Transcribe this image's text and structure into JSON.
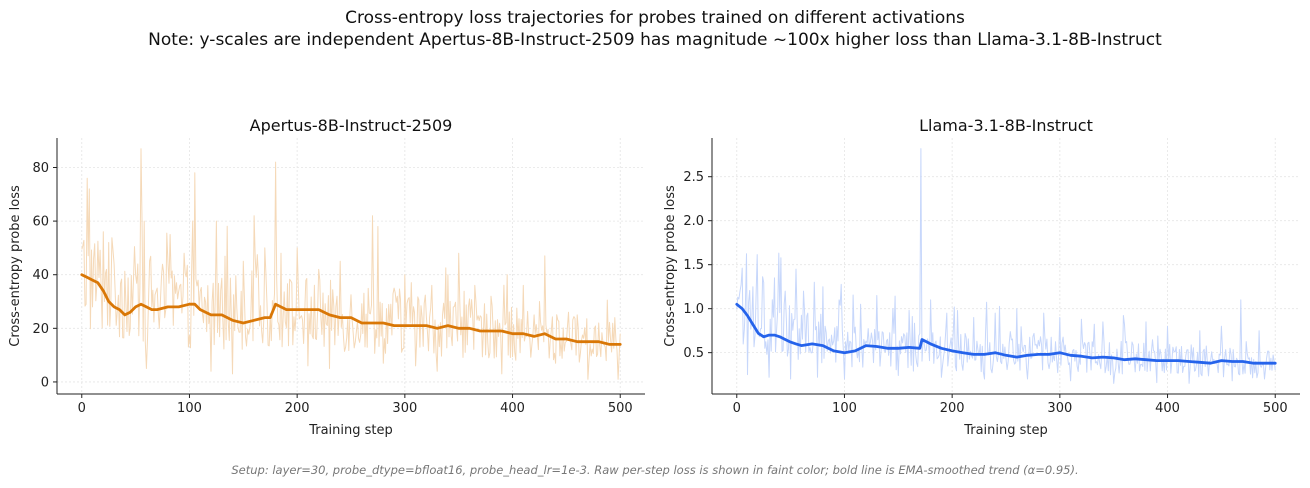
{
  "figure": {
    "title_line1": "Cross-entropy loss trajectories for probes trained on different activations",
    "title_line2": "Note: y-scales are independent Apertus-8B-Instruct-2509 has magnitude ~100x higher loss than Llama-3.1-8B-Instruct",
    "footnote": "Setup: layer=30, probe_dtype=bfloat16, probe_head_lr=1e-3. Raw per-step loss is shown in faint color; bold line is EMA-smoothed trend (α=0.95)."
  },
  "chart_data": [
    {
      "type": "line",
      "title": "Apertus-8B-Instruct-2509",
      "xlabel": "Training step",
      "ylabel": "Cross-entropy probe loss",
      "xlim": [
        -23,
        523
      ],
      "ylim": [
        -4.5,
        91
      ],
      "xticks": [
        0,
        100,
        200,
        300,
        400,
        500
      ],
      "yticks": [
        0,
        20,
        40,
        60,
        80
      ],
      "grid": true,
      "colors": {
        "raw": "#f5d9b8",
        "smooth": "#d97706"
      },
      "raw_loss": {
        "x_start": 0,
        "x_step": 1,
        "baseline": [
          40,
          36,
          34,
          31,
          29,
          28,
          27,
          27,
          27,
          26,
          26,
          25,
          24,
          24,
          23,
          22,
          22,
          21,
          20,
          19,
          18,
          17,
          16,
          16,
          15,
          14
        ],
        "spikes": [
          [
            5,
            76
          ],
          [
            7,
            72
          ],
          [
            10,
            28
          ],
          [
            20,
            56
          ],
          [
            25,
            52
          ],
          [
            30,
            44
          ],
          [
            45,
            20
          ],
          [
            50,
            40
          ],
          [
            55,
            87
          ],
          [
            58,
            60
          ],
          [
            62,
            30
          ],
          [
            70,
            35
          ],
          [
            82,
            55
          ],
          [
            95,
            48
          ],
          [
            105,
            78
          ],
          [
            125,
            60
          ],
          [
            150,
            45
          ],
          [
            160,
            62
          ],
          [
            170,
            50
          ],
          [
            180,
            82
          ],
          [
            185,
            48
          ],
          [
            200,
            50
          ],
          [
            220,
            42
          ],
          [
            240,
            45
          ],
          [
            270,
            62
          ],
          [
            275,
            58
          ],
          [
            290,
            35
          ],
          [
            300,
            40
          ],
          [
            325,
            36
          ],
          [
            340,
            40
          ],
          [
            350,
            48
          ],
          [
            365,
            36
          ],
          [
            380,
            32
          ],
          [
            395,
            40
          ],
          [
            410,
            36
          ],
          [
            425,
            30
          ],
          [
            430,
            47
          ],
          [
            460,
            25
          ],
          [
            480,
            22
          ],
          [
            495,
            24
          ]
        ],
        "dips": [
          [
            60,
            5
          ],
          [
            120,
            4
          ],
          [
            140,
            3
          ],
          [
            210,
            6
          ],
          [
            230,
            5
          ],
          [
            280,
            7
          ],
          [
            310,
            6
          ],
          [
            330,
            4
          ],
          [
            390,
            3
          ],
          [
            440,
            7
          ],
          [
            470,
            1
          ],
          [
            498,
            1
          ]
        ]
      },
      "smoothed_loss": {
        "x": [
          0,
          5,
          10,
          15,
          20,
          25,
          30,
          35,
          40,
          45,
          50,
          55,
          60,
          65,
          70,
          80,
          90,
          100,
          105,
          110,
          120,
          130,
          140,
          150,
          160,
          170,
          175,
          180,
          190,
          200,
          210,
          220,
          230,
          240,
          250,
          260,
          270,
          280,
          290,
          300,
          310,
          320,
          330,
          340,
          350,
          360,
          370,
          380,
          390,
          400,
          410,
          420,
          430,
          440,
          450,
          460,
          470,
          480,
          490,
          500
        ],
        "y": [
          40,
          39,
          38,
          37,
          34,
          30,
          28,
          27,
          25,
          26,
          28,
          29,
          28,
          27,
          27,
          28,
          28,
          29,
          29,
          27,
          25,
          25,
          23,
          22,
          23,
          24,
          24,
          29,
          27,
          27,
          27,
          27,
          25,
          24,
          24,
          22,
          22,
          22,
          21,
          21,
          21,
          21,
          20,
          21,
          20,
          20,
          19,
          19,
          19,
          18,
          18,
          17,
          18,
          16,
          16,
          15,
          15,
          15,
          14,
          14
        ]
      }
    },
    {
      "type": "line",
      "title": "Llama-3.1-8B-Instruct",
      "xlabel": "Training step",
      "ylabel": "Cross-entropy probe loss",
      "xlim": [
        -23,
        523
      ],
      "ylim": [
        0.03,
        2.94
      ],
      "xticks": [
        0,
        100,
        200,
        300,
        400,
        500
      ],
      "yticks": [
        0.5,
        1.0,
        1.5,
        2.0,
        2.5
      ],
      "grid": true,
      "colors": {
        "raw": "#c7d7fb",
        "smooth": "#2563eb"
      },
      "raw_loss": {
        "x_start": 0,
        "x_step": 1,
        "baseline": [
          1.05,
          0.9,
          0.75,
          0.68,
          0.62,
          0.58,
          0.55,
          0.53,
          0.52,
          0.52,
          0.51,
          0.5,
          0.49,
          0.48,
          0.47,
          0.47,
          0.46,
          0.45,
          0.44,
          0.43,
          0.42,
          0.41,
          0.4,
          0.39,
          0.38,
          0.37
        ],
        "spikes": [
          [
            3,
            1.2
          ],
          [
            8,
            1.05
          ],
          [
            18,
            1.2
          ],
          [
            25,
            1.3
          ],
          [
            35,
            1.35
          ],
          [
            45,
            1.2
          ],
          [
            55,
            1.45
          ],
          [
            62,
            1.2
          ],
          [
            72,
            1.3
          ],
          [
            80,
            1.25
          ],
          [
            95,
            1.1
          ],
          [
            115,
            1.05
          ],
          [
            130,
            1.15
          ],
          [
            145,
            1.0
          ],
          [
            160,
            0.98
          ],
          [
            171,
            2.82
          ],
          [
            180,
            1.1
          ],
          [
            195,
            0.95
          ],
          [
            220,
            0.9
          ],
          [
            240,
            0.95
          ],
          [
            260,
            1.0
          ],
          [
            285,
            0.95
          ],
          [
            300,
            0.9
          ],
          [
            320,
            0.88
          ],
          [
            340,
            0.85
          ],
          [
            360,
            0.82
          ],
          [
            380,
            0.85
          ],
          [
            400,
            0.8
          ],
          [
            430,
            0.75
          ],
          [
            450,
            0.8
          ],
          [
            468,
            1.1
          ],
          [
            485,
            0.75
          ]
        ],
        "dips": [
          [
            10,
            0.25
          ],
          [
            30,
            0.22
          ],
          [
            50,
            0.2
          ],
          [
            75,
            0.22
          ],
          [
            100,
            0.2
          ],
          [
            150,
            0.24
          ],
          [
            190,
            0.22
          ],
          [
            230,
            0.2
          ],
          [
            270,
            0.2
          ],
          [
            310,
            0.18
          ],
          [
            350,
            0.15
          ],
          [
            390,
            0.16
          ],
          [
            420,
            0.15
          ],
          [
            460,
            0.18
          ],
          [
            490,
            0.2
          ]
        ]
      },
      "smoothed_loss": {
        "x": [
          0,
          5,
          10,
          15,
          20,
          25,
          30,
          35,
          40,
          45,
          50,
          55,
          60,
          70,
          80,
          90,
          100,
          110,
          120,
          130,
          140,
          150,
          160,
          170,
          172,
          180,
          190,
          200,
          210,
          220,
          230,
          240,
          250,
          260,
          270,
          280,
          290,
          300,
          310,
          320,
          330,
          340,
          350,
          360,
          370,
          380,
          390,
          400,
          410,
          420,
          430,
          440,
          450,
          460,
          470,
          480,
          490,
          500
        ],
        "y": [
          1.05,
          1.0,
          0.92,
          0.82,
          0.72,
          0.68,
          0.7,
          0.7,
          0.68,
          0.65,
          0.62,
          0.6,
          0.58,
          0.6,
          0.58,
          0.52,
          0.5,
          0.52,
          0.58,
          0.57,
          0.55,
          0.55,
          0.56,
          0.55,
          0.65,
          0.6,
          0.55,
          0.52,
          0.5,
          0.48,
          0.48,
          0.5,
          0.47,
          0.45,
          0.47,
          0.48,
          0.48,
          0.5,
          0.47,
          0.46,
          0.44,
          0.45,
          0.44,
          0.42,
          0.43,
          0.42,
          0.41,
          0.41,
          0.41,
          0.4,
          0.39,
          0.38,
          0.41,
          0.4,
          0.4,
          0.38,
          0.38,
          0.38
        ]
      }
    }
  ]
}
